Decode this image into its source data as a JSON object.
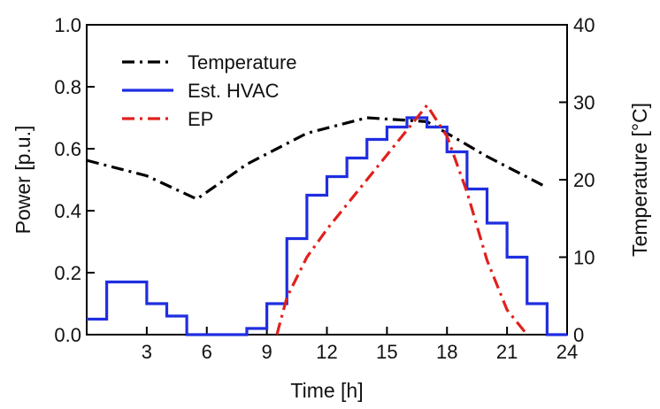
{
  "chart_data": {
    "type": "line",
    "xlabel": "Time [h]",
    "ylabel": "Power [p.u.]",
    "y2label": "Temperature [°C]",
    "xlim": [
      0,
      24
    ],
    "ylim": [
      0,
      1.0
    ],
    "y2lim": [
      0,
      40
    ],
    "xticks": [
      3,
      6,
      9,
      12,
      15,
      18,
      21,
      24
    ],
    "yticks": [
      0.0,
      0.2,
      0.4,
      0.6,
      0.8,
      1.0
    ],
    "y2ticks": [
      0,
      10,
      20,
      30,
      40
    ],
    "xtick_labels": [
      "3",
      "6",
      "9",
      "12",
      "15",
      "18",
      "21",
      "24"
    ],
    "ytick_labels": [
      "0.0",
      "0.2",
      "0.4",
      "0.6",
      "0.8",
      "1.0"
    ],
    "y2tick_labels": [
      "0",
      "10",
      "20",
      "30",
      "40"
    ],
    "grid": false,
    "legend_position": "top-left",
    "series": [
      {
        "name": "Temperature",
        "axis": "right",
        "style": "dash-dot",
        "color": "#000000",
        "x": [
          0,
          3,
          5.5,
          8,
          11,
          14,
          17,
          20,
          23
        ],
        "values": [
          22.5,
          20.5,
          17.5,
          22.0,
          26.0,
          28.0,
          27.5,
          23.0,
          19.0
        ]
      },
      {
        "name": "Est. HVAC",
        "axis": "left",
        "style": "step",
        "color": "#1f2ee0",
        "x": [
          0,
          1,
          3,
          4,
          5,
          6,
          7,
          8,
          9,
          10,
          11,
          12,
          13,
          14,
          15,
          16,
          17,
          18,
          19,
          20,
          21,
          22,
          23
        ],
        "values": [
          0.05,
          0.17,
          0.1,
          0.06,
          0.0,
          0.0,
          0.0,
          0.02,
          0.1,
          0.31,
          0.45,
          0.51,
          0.57,
          0.63,
          0.67,
          0.7,
          0.67,
          0.59,
          0.47,
          0.36,
          0.25,
          0.1,
          0.0
        ]
      },
      {
        "name": "EP",
        "axis": "left",
        "style": "dash-dot",
        "color": "#e0201c",
        "x": [
          9.5,
          10,
          11,
          12,
          13,
          14,
          15,
          16,
          16.5,
          17,
          18,
          19,
          20,
          21,
          22
        ],
        "values": [
          0.0,
          0.12,
          0.25,
          0.34,
          0.42,
          0.5,
          0.58,
          0.66,
          0.7,
          0.74,
          0.64,
          0.46,
          0.24,
          0.08,
          0.0
        ]
      }
    ]
  }
}
